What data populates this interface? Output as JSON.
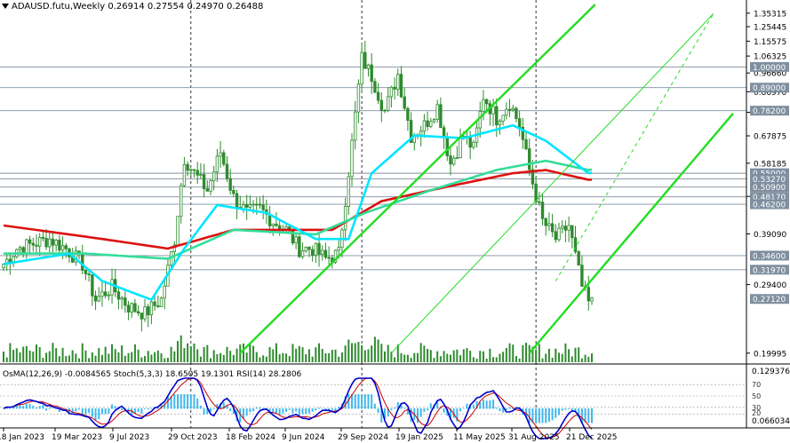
{
  "header": {
    "symbol": "ADAUSD.futu,Weekly",
    "open": "0.26914",
    "high": "0.27554",
    "low": "0.24970",
    "close": "0.26488"
  },
  "indicator_label": {
    "osma": "OsMA(12,26,9) -0.0084565",
    "stoch": "Stoch(5,3,3) 18.6505 19.1301",
    "rsi": "RSI(14) 28.2806"
  },
  "colors": {
    "candle": "#2e8b2e",
    "ema_fast": "#00e5ff",
    "ema_mid": "#33dd99",
    "ema_slow": "#dd1111",
    "channel": "#22dd22",
    "hline": "#7f8fa0",
    "vline": "#000000",
    "osma_hist": "#3fb8ef",
    "macd_line": "#0000cc",
    "signal_line": "#cc0000",
    "volume": "#2e8b2e"
  },
  "chart_data": {
    "type": "candlestick",
    "title": "ADAUSD.futu,Weekly",
    "ylim": [
      0.19,
      1.4
    ],
    "y_scale": "log",
    "price_ticks": [
      "1.35315",
      "1.25445",
      "1.15575",
      "1.06325",
      "0.96660",
      "0.86970",
      "0.77490",
      "0.67875",
      "0.58185",
      "0.48285",
      "0.39090",
      "0.29400",
      "0.19995"
    ],
    "level_labels": [
      {
        "value": 1.0,
        "label": "1.00000"
      },
      {
        "value": 0.89,
        "label": "0.89000"
      },
      {
        "value": 0.782,
        "label": "0.78200"
      },
      {
        "value": 0.55,
        "label": "0.55000"
      },
      {
        "value": 0.5327,
        "label": "0.53270"
      },
      {
        "value": 0.509,
        "label": "0.50900"
      },
      {
        "value": 0.4817,
        "label": "0.48170"
      },
      {
        "value": 0.462,
        "label": "0.46200"
      },
      {
        "value": 0.346,
        "label": "0.34600"
      },
      {
        "value": 0.3197,
        "label": "0.31970"
      },
      {
        "value": 0.2712,
        "label": "0.27120"
      }
    ],
    "horizontal_lines": [
      1.0,
      0.89,
      0.782,
      0.55,
      0.5327,
      0.509,
      0.4817,
      0.462,
      0.346,
      0.3197
    ],
    "x_labels": [
      "18 Jan 2023",
      "19 Mar 2023",
      "9 Jul 2023",
      "29 Oct 2023",
      "18 Feb 2024",
      "9 Jun 2024",
      "29 Sep 2024",
      "19 Jan 2025",
      "11 May 2025",
      "31 Aug 2025",
      "21 Dec 2025"
    ],
    "osma_ticks": [
      "0.129376",
      "0.066034"
    ],
    "osma_levels": [
      "70",
      "50",
      "30",
      "20"
    ],
    "close_anchors": [
      {
        "i": 0,
        "v": 0.33
      },
      {
        "i": 4,
        "v": 0.36
      },
      {
        "i": 9,
        "v": 0.37
      },
      {
        "i": 14,
        "v": 0.38
      },
      {
        "i": 19,
        "v": 0.36
      },
      {
        "i": 24,
        "v": 0.33
      },
      {
        "i": 28,
        "v": 0.27
      },
      {
        "i": 33,
        "v": 0.29
      },
      {
        "i": 38,
        "v": 0.26
      },
      {
        "i": 43,
        "v": 0.25
      },
      {
        "i": 48,
        "v": 0.27
      },
      {
        "i": 52,
        "v": 0.38
      },
      {
        "i": 55,
        "v": 0.6
      },
      {
        "i": 58,
        "v": 0.55
      },
      {
        "i": 62,
        "v": 0.5
      },
      {
        "i": 66,
        "v": 0.62
      },
      {
        "i": 70,
        "v": 0.48
      },
      {
        "i": 74,
        "v": 0.44
      },
      {
        "i": 78,
        "v": 0.45
      },
      {
        "i": 82,
        "v": 0.42
      },
      {
        "i": 86,
        "v": 0.4
      },
      {
        "i": 90,
        "v": 0.36
      },
      {
        "i": 94,
        "v": 0.36
      },
      {
        "i": 98,
        "v": 0.34
      },
      {
        "i": 102,
        "v": 0.35
      },
      {
        "i": 106,
        "v": 0.65
      },
      {
        "i": 109,
        "v": 1.05
      },
      {
        "i": 112,
        "v": 0.95
      },
      {
        "i": 116,
        "v": 0.78
      },
      {
        "i": 120,
        "v": 0.96
      },
      {
        "i": 124,
        "v": 0.68
      },
      {
        "i": 128,
        "v": 0.72
      },
      {
        "i": 132,
        "v": 0.8
      },
      {
        "i": 136,
        "v": 0.58
      },
      {
        "i": 140,
        "v": 0.68
      },
      {
        "i": 143,
        "v": 0.63
      },
      {
        "i": 146,
        "v": 0.85
      },
      {
        "i": 150,
        "v": 0.75
      },
      {
        "i": 154,
        "v": 0.82
      },
      {
        "i": 157,
        "v": 0.72
      },
      {
        "i": 160,
        "v": 0.56
      },
      {
        "i": 164,
        "v": 0.42
      },
      {
        "i": 168,
        "v": 0.38
      },
      {
        "i": 172,
        "v": 0.41
      },
      {
        "i": 176,
        "v": 0.29
      },
      {
        "i": 178,
        "v": 0.265
      }
    ],
    "ema_fast": [
      {
        "i": 0,
        "v": 0.33
      },
      {
        "i": 20,
        "v": 0.35
      },
      {
        "i": 30,
        "v": 0.3
      },
      {
        "i": 45,
        "v": 0.27
      },
      {
        "i": 55,
        "v": 0.36
      },
      {
        "i": 65,
        "v": 0.46
      },
      {
        "i": 80,
        "v": 0.44
      },
      {
        "i": 95,
        "v": 0.38
      },
      {
        "i": 105,
        "v": 0.38
      },
      {
        "i": 112,
        "v": 0.55
      },
      {
        "i": 125,
        "v": 0.68
      },
      {
        "i": 140,
        "v": 0.67
      },
      {
        "i": 155,
        "v": 0.72
      },
      {
        "i": 165,
        "v": 0.66
      },
      {
        "i": 178,
        "v": 0.55
      }
    ],
    "ema_mid": [
      {
        "i": 0,
        "v": 0.35
      },
      {
        "i": 25,
        "v": 0.35
      },
      {
        "i": 50,
        "v": 0.34
      },
      {
        "i": 70,
        "v": 0.4
      },
      {
        "i": 95,
        "v": 0.39
      },
      {
        "i": 110,
        "v": 0.44
      },
      {
        "i": 130,
        "v": 0.5
      },
      {
        "i": 150,
        "v": 0.56
      },
      {
        "i": 165,
        "v": 0.59
      },
      {
        "i": 178,
        "v": 0.56
      }
    ],
    "ema_slow": [
      {
        "i": 0,
        "v": 0.41
      },
      {
        "i": 30,
        "v": 0.38
      },
      {
        "i": 50,
        "v": 0.36
      },
      {
        "i": 70,
        "v": 0.4
      },
      {
        "i": 100,
        "v": 0.4
      },
      {
        "i": 115,
        "v": 0.47
      },
      {
        "i": 135,
        "v": 0.51
      },
      {
        "i": 155,
        "v": 0.55
      },
      {
        "i": 165,
        "v": 0.56
      },
      {
        "i": 178,
        "v": 0.53
      }
    ],
    "channels": [
      {
        "style": "solid",
        "from": {
          "i": 72,
          "v": 0.2
        },
        "to": {
          "i": 180,
          "v": 1.42
        }
      },
      {
        "style": "solid",
        "from": {
          "i": 160,
          "v": 0.2
        },
        "to": {
          "i": 222,
          "v": 0.77
        }
      },
      {
        "style": "thin",
        "from": {
          "i": 118,
          "v": 0.2
        },
        "to": {
          "i": 216,
          "v": 1.35
        }
      },
      {
        "style": "dashed",
        "from": {
          "i": 168,
          "v": 0.3
        },
        "to": {
          "i": 216,
          "v": 1.35
        }
      }
    ],
    "vertical_markers": [
      57,
      109,
      162
    ]
  }
}
